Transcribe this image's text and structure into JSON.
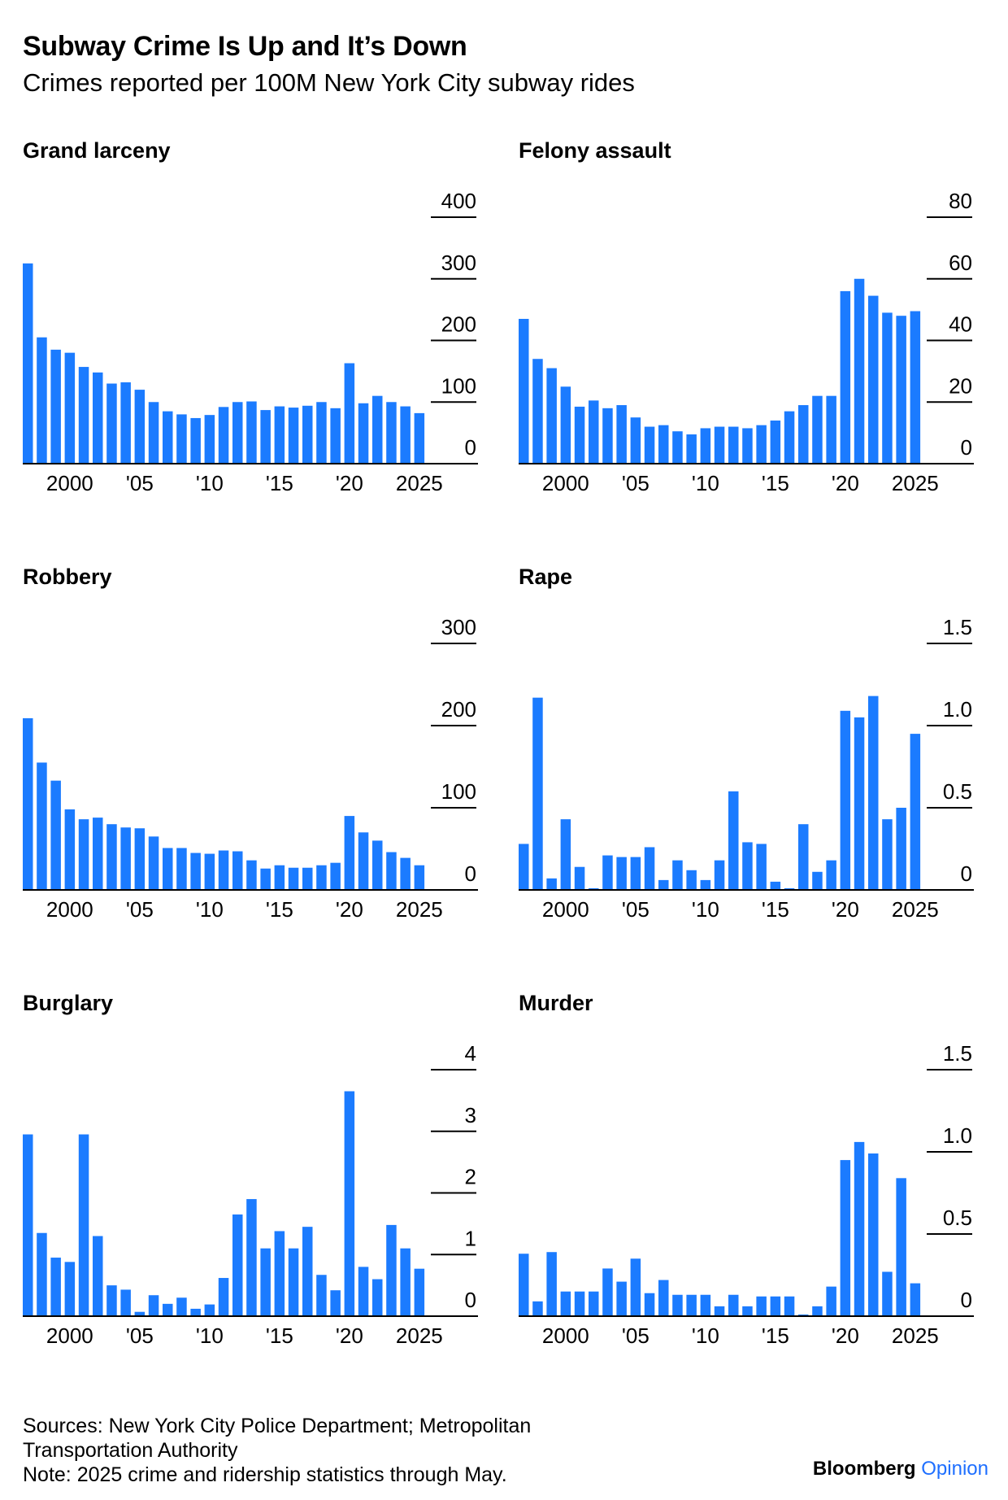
{
  "header": {
    "title": "Subway Crime Is Up and It’s Down",
    "subtitle": "Crimes reported per 100M New York City subway rides"
  },
  "colors": {
    "bar": "#1b7bff",
    "text": "#000000",
    "axis": "#000000",
    "brand_accent": "#1e6fff"
  },
  "chart_data": [
    {
      "type": "bar",
      "title": "Grand larceny",
      "x": [
        1997,
        1998,
        1999,
        2000,
        2001,
        2002,
        2003,
        2004,
        2005,
        2006,
        2007,
        2008,
        2009,
        2010,
        2011,
        2012,
        2013,
        2014,
        2015,
        2016,
        2017,
        2018,
        2019,
        2020,
        2021,
        2022,
        2023,
        2024,
        2025
      ],
      "values": [
        325,
        205,
        185,
        180,
        157,
        148,
        130,
        132,
        120,
        100,
        85,
        80,
        74,
        79,
        92,
        100,
        101,
        87,
        93,
        91,
        94,
        100,
        90,
        163,
        98,
        110,
        100,
        93,
        82
      ],
      "ylim": [
        0,
        400
      ],
      "yticks": [
        "400",
        "300",
        "200",
        "100",
        "0"
      ],
      "ytick_values": [
        400,
        300,
        200,
        100,
        0
      ],
      "xticks": [
        "2000",
        "'05",
        "'10",
        "'15",
        "'20",
        "2025"
      ],
      "xtick_values": [
        2000,
        2005,
        2010,
        2015,
        2020,
        2025
      ],
      "y_axis_position": "right",
      "grid": false,
      "legend": "none"
    },
    {
      "type": "bar",
      "title": "Felony assault",
      "x": [
        1997,
        1998,
        1999,
        2000,
        2001,
        2002,
        2003,
        2004,
        2005,
        2006,
        2007,
        2008,
        2009,
        2010,
        2011,
        2012,
        2013,
        2014,
        2015,
        2016,
        2017,
        2018,
        2019,
        2020,
        2021,
        2022,
        2023,
        2024,
        2025
      ],
      "values": [
        47,
        34,
        31,
        25,
        18.5,
        20.5,
        18,
        19,
        15,
        12,
        12.5,
        10.5,
        9.5,
        11.5,
        12,
        12,
        11.5,
        12.5,
        14,
        17,
        19,
        22,
        22,
        56,
        60,
        54.5,
        49,
        48,
        49.5
      ],
      "ylim": [
        0,
        80
      ],
      "yticks": [
        "80",
        "60",
        "40",
        "20",
        "0"
      ],
      "ytick_values": [
        80,
        60,
        40,
        20,
        0
      ],
      "xticks": [
        "2000",
        "'05",
        "'10",
        "'15",
        "'20",
        "2025"
      ],
      "xtick_values": [
        2000,
        2005,
        2010,
        2015,
        2020,
        2025
      ],
      "y_axis_position": "right",
      "grid": false,
      "legend": "none"
    },
    {
      "type": "bar",
      "title": "Robbery",
      "x": [
        1997,
        1998,
        1999,
        2000,
        2001,
        2002,
        2003,
        2004,
        2005,
        2006,
        2007,
        2008,
        2009,
        2010,
        2011,
        2012,
        2013,
        2014,
        2015,
        2016,
        2017,
        2018,
        2019,
        2020,
        2021,
        2022,
        2023,
        2024,
        2025
      ],
      "values": [
        209,
        155,
        133,
        98,
        86,
        88,
        80,
        76,
        75,
        65,
        51,
        51,
        45,
        44,
        48,
        47,
        36,
        26,
        30,
        27,
        27,
        30,
        33,
        90,
        70,
        60,
        46,
        39,
        30
      ],
      "ylim": [
        0,
        300
      ],
      "yticks": [
        "300",
        "200",
        "100",
        "0"
      ],
      "ytick_values": [
        300,
        200,
        100,
        0
      ],
      "xticks": [
        "2000",
        "'05",
        "'10",
        "'15",
        "'20",
        "2025"
      ],
      "xtick_values": [
        2000,
        2005,
        2010,
        2015,
        2020,
        2025
      ],
      "y_axis_position": "right",
      "grid": false,
      "legend": "none"
    },
    {
      "type": "bar",
      "title": "Rape",
      "x": [
        1997,
        1998,
        1999,
        2000,
        2001,
        2002,
        2003,
        2004,
        2005,
        2006,
        2007,
        2008,
        2009,
        2010,
        2011,
        2012,
        2013,
        2014,
        2015,
        2016,
        2017,
        2018,
        2019,
        2020,
        2021,
        2022,
        2023,
        2024,
        2025
      ],
      "values": [
        0.28,
        1.17,
        0.07,
        0.43,
        0.14,
        0.01,
        0.21,
        0.2,
        0.2,
        0.26,
        0.06,
        0.18,
        0.12,
        0.06,
        0.18,
        0.6,
        0.29,
        0.28,
        0.05,
        0.01,
        0.4,
        0.11,
        0.18,
        1.09,
        1.05,
        1.18,
        0.43,
        0.5,
        0.95
      ],
      "ylim": [
        0,
        1.5
      ],
      "yticks": [
        "1.5",
        "1.0",
        "0.5",
        "0"
      ],
      "ytick_values": [
        1.5,
        1.0,
        0.5,
        0
      ],
      "xticks": [
        "2000",
        "'05",
        "'10",
        "'15",
        "'20",
        "2025"
      ],
      "xtick_values": [
        2000,
        2005,
        2010,
        2015,
        2020,
        2025
      ],
      "y_axis_position": "right",
      "grid": false,
      "legend": "none"
    },
    {
      "type": "bar",
      "title": "Burglary",
      "x": [
        1997,
        1998,
        1999,
        2000,
        2001,
        2002,
        2003,
        2004,
        2005,
        2006,
        2007,
        2008,
        2009,
        2010,
        2011,
        2012,
        2013,
        2014,
        2015,
        2016,
        2017,
        2018,
        2019,
        2020,
        2021,
        2022,
        2023,
        2024,
        2025
      ],
      "values": [
        2.95,
        1.35,
        0.95,
        0.88,
        2.95,
        1.3,
        0.5,
        0.43,
        0.07,
        0.34,
        0.2,
        0.3,
        0.12,
        0.19,
        0.62,
        1.65,
        1.9,
        1.1,
        1.38,
        1.1,
        1.45,
        0.67,
        0.42,
        3.65,
        0.8,
        0.6,
        1.48,
        1.1,
        0.77
      ],
      "ylim": [
        0,
        4
      ],
      "yticks": [
        "4",
        "3",
        "2",
        "1",
        "0"
      ],
      "ytick_values": [
        4,
        3,
        2,
        1,
        0
      ],
      "xticks": [
        "2000",
        "'05",
        "'10",
        "'15",
        "'20",
        "2025"
      ],
      "xtick_values": [
        2000,
        2005,
        2010,
        2015,
        2020,
        2025
      ],
      "y_axis_position": "right",
      "grid": false,
      "legend": "none"
    },
    {
      "type": "bar",
      "title": "Murder",
      "x": [
        1997,
        1998,
        1999,
        2000,
        2001,
        2002,
        2003,
        2004,
        2005,
        2006,
        2007,
        2008,
        2009,
        2010,
        2011,
        2012,
        2013,
        2014,
        2015,
        2016,
        2017,
        2018,
        2019,
        2020,
        2021,
        2022,
        2023,
        2024,
        2025
      ],
      "values": [
        0.38,
        0.09,
        0.39,
        0.15,
        0.15,
        0.15,
        0.29,
        0.21,
        0.35,
        0.14,
        0.22,
        0.13,
        0.13,
        0.13,
        0.06,
        0.13,
        0.06,
        0.12,
        0.12,
        0.12,
        0.01,
        0.06,
        0.18,
        0.95,
        1.06,
        0.99,
        0.27,
        0.84,
        0.2
      ],
      "ylim": [
        0,
        1.5
      ],
      "yticks": [
        "1.5",
        "1.0",
        "0.5",
        "0"
      ],
      "ytick_values": [
        1.5,
        1.0,
        0.5,
        0
      ],
      "xticks": [
        "2000",
        "'05",
        "'10",
        "'15",
        "'20",
        "2025"
      ],
      "xtick_values": [
        2000,
        2005,
        2010,
        2015,
        2020,
        2025
      ],
      "y_axis_position": "right",
      "grid": false,
      "legend": "none"
    }
  ],
  "footer": {
    "sources_line1": "Sources: New York City Police Department; Metropolitan",
    "sources_line2": "Transportation Authority",
    "note": "Note: 2025 crime and ridership statistics through May."
  },
  "branding": {
    "name": "Bloomberg",
    "suffix": "Opinion"
  }
}
